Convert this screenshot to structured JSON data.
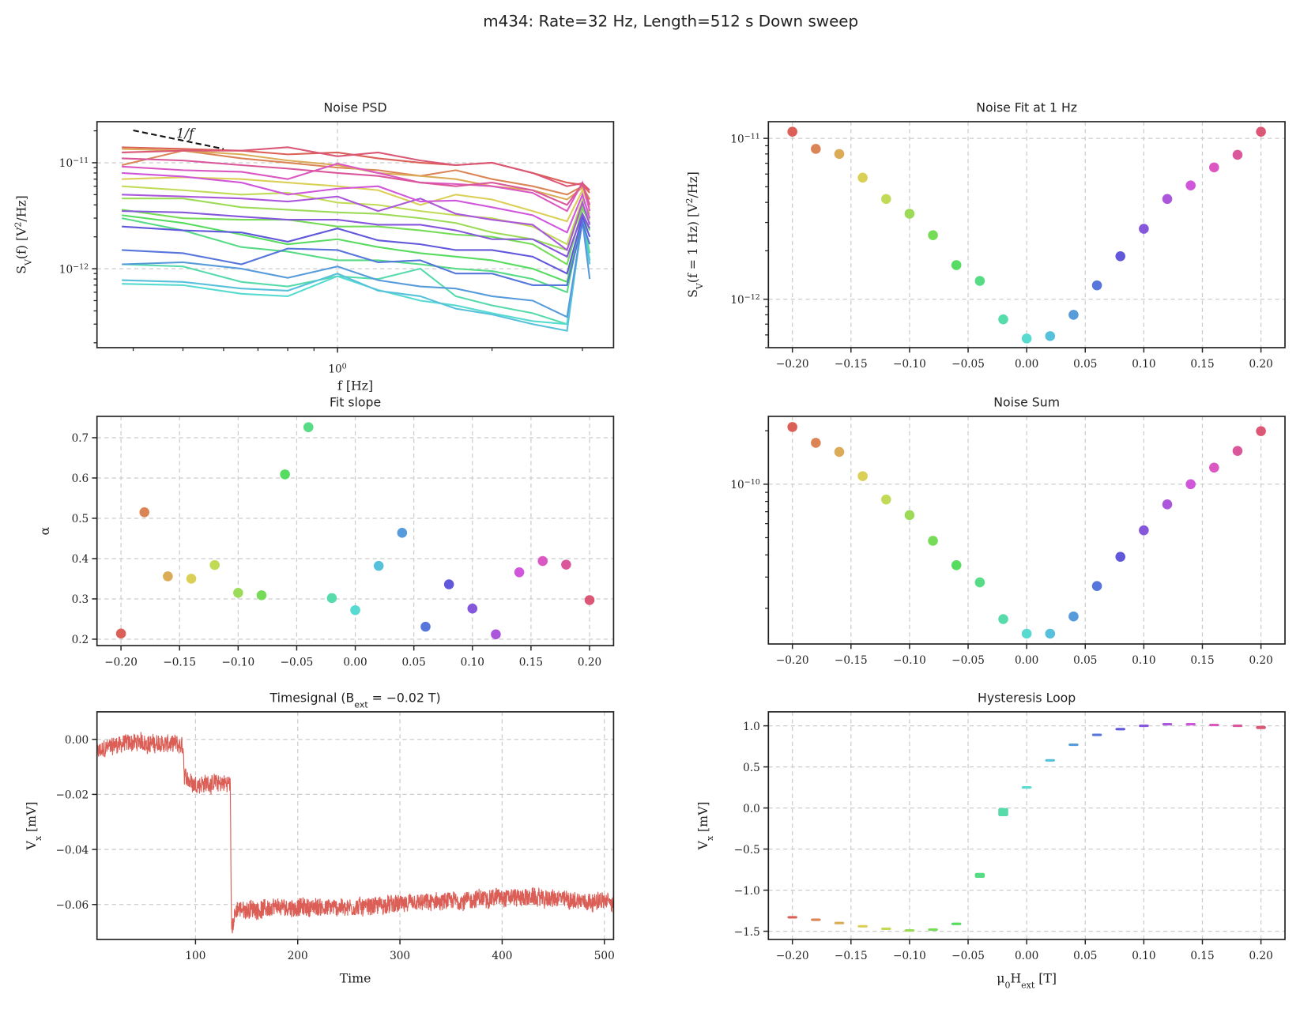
{
  "suptitle": "m434: Rate=32 Hz, Length=512 s Down sweep",
  "palette": [
    "hsl(4,65%,60%)",
    "hsl(21,65%,60%)",
    "hsl(38,65%,60%)",
    "hsl(55,65%,60%)",
    "hsl(72,65%,60%)",
    "hsl(89,65%,60%)",
    "hsl(106,65%,60%)",
    "hsl(124,65%,60%)",
    "hsl(141,65%,60%)",
    "hsl(158,65%,60%)",
    "hsl(175,65%,60%)",
    "hsl(192,65%,60%)",
    "hsl(209,65%,60%)",
    "hsl(226,65%,60%)",
    "hsl(244,65%,60%)",
    "hsl(261,65%,60%)",
    "hsl(278,65%,60%)",
    "hsl(295,65%,60%)",
    "hsl(312,65%,60%)",
    "hsl(329,65%,60%)",
    "hsl(346,65%,60%)"
  ],
  "chart_data": [
    {
      "type": "line",
      "title": "Noise PSD",
      "xlabel": "f  [Hz]",
      "ylabel": "S_{V}(f)  [V^{2}/Hz]",
      "xscale": "log",
      "yscale": "log",
      "xlim": [
        0.34,
        3.45
      ],
      "ylim": [
        1.8e-13,
        2.44e-11
      ],
      "grid": true,
      "xticks": [
        {
          "v": 1,
          "label": "10^{0}"
        }
      ],
      "yticks": [
        {
          "v": 1e-11,
          "label": "10^{−11}"
        },
        {
          "v": 1e-12,
          "label": "10^{−12}"
        }
      ],
      "x": [
        0.38,
        0.5,
        0.65,
        0.8,
        1.0,
        1.2,
        1.45,
        1.7,
        2.0,
        2.4,
        2.8,
        3.0,
        3.1
      ],
      "series": [
        {
          "values": [
            1.4e-11,
            1.35e-11,
            1.3e-11,
            1.2e-11,
            1.25e-11,
            1.1e-11,
            1e-11,
            9.5e-12,
            1e-11,
            8e-12,
            6.5e-12,
            6.2e-12,
            5.2e-12
          ]
        },
        {
          "values": [
            9.5e-12,
            1.3e-11,
            1.1e-11,
            1e-11,
            9e-12,
            8.5e-12,
            7.5e-12,
            8.5e-12,
            7e-12,
            6e-12,
            5e-12,
            6e-12,
            4.5e-12
          ]
        },
        {
          "values": [
            1.35e-11,
            1.3e-11,
            1.2e-11,
            1.05e-11,
            9.5e-12,
            8e-12,
            7.5e-12,
            7e-12,
            6e-12,
            5.5e-12,
            4.5e-12,
            5.8e-12,
            4e-12
          ]
        },
        {
          "values": [
            7e-12,
            7.3e-12,
            7e-12,
            6.5e-12,
            6e-12,
            5.5e-12,
            4e-12,
            5e-12,
            4.5e-12,
            3.5e-12,
            2.8e-12,
            5.5e-12,
            3.8e-12
          ]
        },
        {
          "values": [
            6e-12,
            5.5e-12,
            5e-12,
            5.2e-12,
            4.2e-12,
            4e-12,
            3.5e-12,
            3.2e-12,
            3e-12,
            2.5e-12,
            1.7e-12,
            4.5e-12,
            3.3e-12
          ]
        },
        {
          "values": [
            4.6e-12,
            4.6e-12,
            3.8e-12,
            3.6e-12,
            3.4e-12,
            3.3e-12,
            3e-12,
            2.7e-12,
            2.2e-12,
            1.9e-12,
            1.5e-12,
            4e-12,
            2.9e-12
          ]
        },
        {
          "values": [
            3.6e-12,
            3e-12,
            2.9e-12,
            2.9e-12,
            2.5e-12,
            2.5e-12,
            2.3e-12,
            2.1e-12,
            2e-12,
            1.7e-12,
            1.1e-12,
            3.7e-12,
            2.7e-12
          ]
        },
        {
          "values": [
            3.2e-12,
            2.7e-12,
            2.1e-12,
            1.7e-12,
            1.9e-12,
            1.6e-12,
            1.4e-12,
            1.3e-12,
            1.2e-12,
            1e-12,
            7.5e-13,
            3.3e-12,
            2.3e-12
          ]
        },
        {
          "values": [
            3e-12,
            2.3e-12,
            1.6e-12,
            1.45e-12,
            1.2e-12,
            1.2e-12,
            1.1e-12,
            1e-12,
            9.5e-13,
            8e-13,
            6e-13,
            3.2e-12,
            1.4e-12
          ]
        },
        {
          "values": [
            1.1e-12,
            1.05e-12,
            7.5e-13,
            6.8e-13,
            8.5e-13,
            8e-13,
            1e-12,
            5.5e-13,
            4.5e-13,
            3.8e-13,
            3e-13,
            3e-12,
            1.2e-12
          ]
        },
        {
          "values": [
            7.2e-13,
            7e-13,
            5.8e-13,
            5.5e-13,
            8.5e-13,
            6.3e-13,
            5e-13,
            4.5e-13,
            3.8e-13,
            3.2e-13,
            3e-13,
            2.8e-12,
            1.2e-12
          ]
        },
        {
          "values": [
            7.8e-13,
            7.5e-13,
            6.5e-13,
            6.2e-13,
            9e-13,
            6.2e-13,
            5.5e-13,
            4.2e-13,
            3.7e-13,
            3e-13,
            2.6e-13,
            3e-12,
            1.1e-12
          ]
        },
        {
          "values": [
            1.1e-12,
            1.15e-12,
            1e-12,
            8.2e-13,
            1.05e-12,
            7.8e-13,
            6.8e-13,
            6.5e-13,
            5.5e-13,
            5e-13,
            3.5e-13,
            2.8e-12,
            8e-13
          ]
        },
        {
          "values": [
            1.5e-12,
            1.4e-12,
            1.1e-12,
            1.55e-12,
            1.5e-12,
            1.15e-12,
            1.2e-12,
            9e-13,
            9e-13,
            7e-13,
            7e-13,
            2.7e-12,
            1.7e-12
          ]
        },
        {
          "values": [
            2.5e-12,
            2.3e-12,
            2.2e-12,
            1.8e-12,
            2.4e-12,
            1.85e-12,
            1.7e-12,
            1.5e-12,
            1.5e-12,
            1.3e-12,
            9e-13,
            3.1e-12,
            2e-12
          ]
        },
        {
          "values": [
            3.5e-12,
            3.4e-12,
            3.1e-12,
            2.9e-12,
            2.9e-12,
            2.6e-12,
            2.6e-12,
            2.3e-12,
            1.9e-12,
            1.9e-12,
            1.3e-12,
            3.3e-12,
            2.4e-12
          ]
        },
        {
          "values": [
            5e-12,
            4.8e-12,
            4.6e-12,
            4.3e-12,
            4.8e-12,
            3.5e-12,
            4.6e-12,
            3.3e-12,
            2.9e-12,
            2.6e-12,
            1.5e-12,
            4.2e-12,
            2.6e-12
          ]
        },
        {
          "values": [
            8e-12,
            7.4e-12,
            6.5e-12,
            5e-12,
            5.7e-12,
            6e-12,
            4.3e-12,
            4.4e-12,
            3.8e-12,
            3.2e-12,
            2.2e-12,
            5e-12,
            3e-12
          ]
        },
        {
          "values": [
            9.2e-12,
            8.5e-12,
            8.2e-12,
            7e-12,
            9.8e-12,
            8e-12,
            6.5e-12,
            6.3e-12,
            6e-12,
            5.2e-12,
            3.5e-12,
            6.5e-12,
            3.5e-12
          ]
        },
        {
          "values": [
            1.1e-11,
            1.05e-11,
            9.5e-12,
            8.8e-12,
            8e-12,
            7.5e-12,
            6.5e-12,
            6e-12,
            6.5e-12,
            5.5e-12,
            4e-12,
            6.3e-12,
            4e-12
          ]
        },
        {
          "values": [
            1.25e-11,
            1.3e-11,
            1.3e-11,
            1.4e-11,
            1.15e-11,
            1.25e-11,
            1.05e-11,
            9.5e-12,
            1e-11,
            8e-12,
            6e-12,
            6.4e-12,
            5.5e-12
          ]
        }
      ],
      "annotation": {
        "text": "1/f",
        "x": [
          0.4,
          0.6
        ],
        "y": [
          2.02e-11,
          1.35e-11
        ]
      }
    },
    {
      "type": "scatter",
      "title": "Noise Fit at 1 Hz",
      "xlabel": "",
      "ylabel": "S_{V}(f = 1 Hz)  [V^{2}/Hz]",
      "xscale": "linear",
      "yscale": "log",
      "xlim": [
        -0.2205,
        0.2205
      ],
      "ylim": [
        5e-13,
        1.27e-11
      ],
      "grid": true,
      "xticks": [
        {
          "v": -0.2,
          "label": "−0.20"
        },
        {
          "v": -0.15,
          "label": "−0.15"
        },
        {
          "v": -0.1,
          "label": "−0.10"
        },
        {
          "v": -0.05,
          "label": "−0.05"
        },
        {
          "v": 0,
          "label": "0.00"
        },
        {
          "v": 0.05,
          "label": "0.05"
        },
        {
          "v": 0.1,
          "label": "0.10"
        },
        {
          "v": 0.15,
          "label": "0.15"
        },
        {
          "v": 0.2,
          "label": "0.20"
        }
      ],
      "yticks": [
        {
          "v": 1e-11,
          "label": "10^{−11}"
        },
        {
          "v": 1e-12,
          "label": "10^{−12}"
        }
      ],
      "x": [
        -0.2,
        -0.18,
        -0.16,
        -0.14,
        -0.12,
        -0.1,
        -0.08,
        -0.06,
        -0.04,
        -0.02,
        0,
        0.02,
        0.04,
        0.06,
        0.08,
        0.1,
        0.12,
        0.14,
        0.16,
        0.18,
        0.2
      ],
      "y": [
        1.1e-11,
        8.6e-12,
        8e-12,
        5.7e-12,
        4.2e-12,
        3.4e-12,
        2.5e-12,
        1.63e-12,
        1.3e-12,
        7.5e-13,
        5.7e-13,
        5.9e-13,
        8e-13,
        1.22e-12,
        1.85e-12,
        2.74e-12,
        4.2e-12,
        5.1e-12,
        6.6e-12,
        7.9e-12,
        1.1e-11
      ]
    },
    {
      "type": "scatter",
      "title": "Fit slope",
      "xlabel": "",
      "ylabel": "α",
      "xscale": "linear",
      "yscale": "linear",
      "xlim": [
        -0.2205,
        0.2205
      ],
      "ylim": [
        0.184,
        0.753
      ],
      "grid": true,
      "xticks": [
        {
          "v": -0.2,
          "label": "−0.20"
        },
        {
          "v": -0.15,
          "label": "−0.15"
        },
        {
          "v": -0.1,
          "label": "−0.10"
        },
        {
          "v": -0.05,
          "label": "−0.05"
        },
        {
          "v": 0,
          "label": "0.00"
        },
        {
          "v": 0.05,
          "label": "0.05"
        },
        {
          "v": 0.1,
          "label": "0.10"
        },
        {
          "v": 0.15,
          "label": "0.15"
        },
        {
          "v": 0.2,
          "label": "0.20"
        }
      ],
      "yticks": [
        {
          "v": 0.2,
          "label": "0.2"
        },
        {
          "v": 0.3,
          "label": "0.3"
        },
        {
          "v": 0.4,
          "label": "0.4"
        },
        {
          "v": 0.5,
          "label": "0.5"
        },
        {
          "v": 0.6,
          "label": "0.6"
        },
        {
          "v": 0.7,
          "label": "0.7"
        }
      ],
      "x": [
        -0.2,
        -0.18,
        -0.16,
        -0.14,
        -0.12,
        -0.1,
        -0.08,
        -0.06,
        -0.04,
        -0.02,
        0,
        0.02,
        0.04,
        0.06,
        0.08,
        0.1,
        0.12,
        0.14,
        0.16,
        0.18,
        0.2
      ],
      "y": [
        0.214,
        0.515,
        0.356,
        0.35,
        0.384,
        0.315,
        0.309,
        0.609,
        0.726,
        0.302,
        0.272,
        0.382,
        0.464,
        0.231,
        0.336,
        0.276,
        0.212,
        0.366,
        0.394,
        0.385,
        0.297
      ]
    },
    {
      "type": "scatter",
      "title": "Noise Sum",
      "xlabel": "",
      "ylabel": "",
      "xscale": "linear",
      "yscale": "log",
      "xlim": [
        -0.2205,
        0.2205
      ],
      "ylim": [
        1.26e-11,
        2.41e-10
      ],
      "grid": true,
      "xticks": [
        {
          "v": -0.2,
          "label": "−0.20"
        },
        {
          "v": -0.15,
          "label": "−0.15"
        },
        {
          "v": -0.1,
          "label": "−0.10"
        },
        {
          "v": -0.05,
          "label": "−0.05"
        },
        {
          "v": 0,
          "label": "0.00"
        },
        {
          "v": 0.05,
          "label": "0.05"
        },
        {
          "v": 0.1,
          "label": "0.10"
        },
        {
          "v": 0.15,
          "label": "0.15"
        },
        {
          "v": 0.2,
          "label": "0.20"
        }
      ],
      "yticks": [
        {
          "v": 1e-10,
          "label": "10^{−10}"
        }
      ],
      "x": [
        -0.2,
        -0.18,
        -0.16,
        -0.14,
        -0.12,
        -0.1,
        -0.08,
        -0.06,
        -0.04,
        -0.02,
        0,
        0.02,
        0.04,
        0.06,
        0.08,
        0.1,
        0.12,
        0.14,
        0.16,
        0.18,
        0.2
      ],
      "y": [
        2.1e-10,
        1.71e-10,
        1.52e-10,
        1.11e-10,
        8.2e-11,
        6.7e-11,
        4.8e-11,
        3.5e-11,
        2.8e-11,
        1.74e-11,
        1.44e-11,
        1.44e-11,
        1.8e-11,
        2.67e-11,
        3.9e-11,
        5.5e-11,
        7.7e-11,
        1e-10,
        1.24e-10,
        1.54e-10,
        1.99e-10
      ]
    },
    {
      "type": "line",
      "title": "Timesignal (B_{ext} = −0.02 T)",
      "xlabel": "Time",
      "ylabel": "V_{x}  [mV]",
      "xscale": "linear",
      "yscale": "linear",
      "xlim": [
        3.6,
        509
      ],
      "ylim": [
        -0.0727,
        0.00998
      ],
      "grid": true,
      "color": "#db5f57",
      "xticks": [
        {
          "v": 100,
          "label": "100"
        },
        {
          "v": 200,
          "label": "200"
        },
        {
          "v": 300,
          "label": "300"
        },
        {
          "v": 400,
          "label": "400"
        },
        {
          "v": 500,
          "label": "500"
        }
      ],
      "yticks": [
        {
          "v": 0,
          "label": "0.00"
        },
        {
          "v": -0.02,
          "label": "−0.02"
        },
        {
          "v": -0.04,
          "label": "−0.04"
        },
        {
          "v": -0.06,
          "label": "−0.06"
        }
      ],
      "t": [
        3.6,
        20,
        40,
        60,
        80,
        88,
        89,
        100,
        120,
        134,
        135,
        135.5,
        140,
        200,
        250,
        300,
        350,
        400,
        450,
        509
      ],
      "mean": [
        -0.005,
        -0.002,
        -0.001,
        -0.0015,
        -0.002,
        -0.003,
        -0.014,
        -0.016,
        -0.016,
        -0.016,
        -0.06,
        -0.068,
        -0.062,
        -0.061,
        -0.061,
        -0.06,
        -0.059,
        -0.057,
        -0.058,
        -0.059
      ],
      "noise_halfwidth": 0.004
    },
    {
      "type": "scatter",
      "title": "Hysteresis Loop",
      "xlabel": "μ_{0}H_{ext}  [T]",
      "ylabel": "V_{x}  [mV]",
      "xscale": "linear",
      "yscale": "linear",
      "xlim": [
        -0.2205,
        0.2205
      ],
      "ylim": [
        -1.6,
        1.17
      ],
      "grid": true,
      "xticks": [
        {
          "v": -0.2,
          "label": "−0.20"
        },
        {
          "v": -0.15,
          "label": "−0.15"
        },
        {
          "v": -0.1,
          "label": "−0.10"
        },
        {
          "v": -0.05,
          "label": "−0.05"
        },
        {
          "v": 0,
          "label": "0.00"
        },
        {
          "v": 0.05,
          "label": "0.05"
        },
        {
          "v": 0.1,
          "label": "0.10"
        },
        {
          "v": 0.15,
          "label": "0.15"
        },
        {
          "v": 0.2,
          "label": "0.20"
        }
      ],
      "yticks": [
        {
          "v": 1,
          "label": "1.0"
        },
        {
          "v": 0.5,
          "label": "0.5"
        },
        {
          "v": 0,
          "label": "0.0"
        },
        {
          "v": -0.5,
          "label": "−0.5"
        },
        {
          "v": -1,
          "label": "−1.0"
        },
        {
          "v": -1.5,
          "label": "−1.5"
        }
      ],
      "x": [
        -0.2,
        -0.18,
        -0.16,
        -0.14,
        -0.12,
        -0.1,
        -0.08,
        -0.06,
        -0.04,
        -0.02,
        0,
        0.02,
        0.04,
        0.06,
        0.08,
        0.1,
        0.12,
        0.14,
        0.16,
        0.18,
        0.2
      ],
      "y": [
        -1.33,
        -1.36,
        -1.4,
        -1.44,
        -1.47,
        -1.49,
        -1.48,
        -1.41,
        -0.82,
        -0.05,
        0.25,
        0.58,
        0.77,
        0.89,
        0.96,
        1.0,
        1.02,
        1.02,
        1.01,
        1.0,
        0.98
      ],
      "spread": [
        0.03,
        0.02,
        0.02,
        0.02,
        0.02,
        0.02,
        0.02,
        0.02,
        0.06,
        0.1,
        0.02,
        0.02,
        0.02,
        0.02,
        0.02,
        0.03,
        0.03,
        0.03,
        0.03,
        0.03,
        0.04
      ]
    }
  ]
}
